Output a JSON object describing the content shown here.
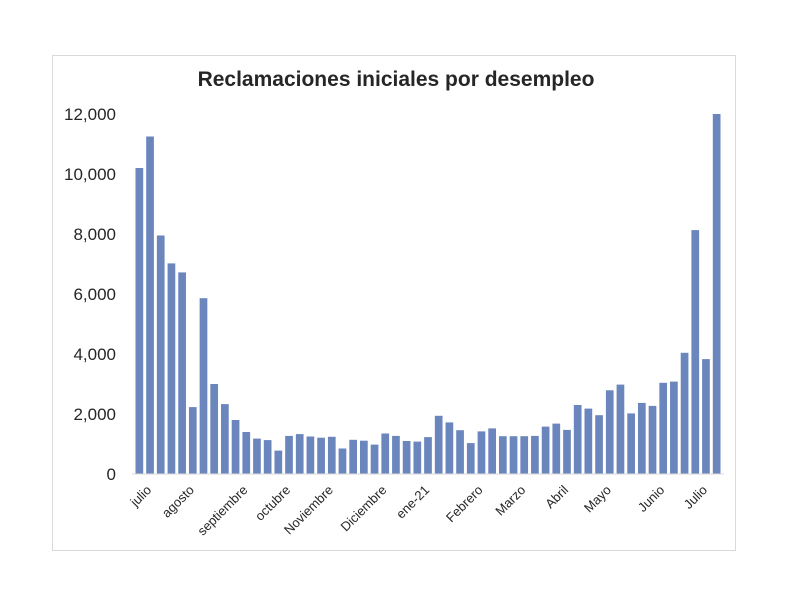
{
  "chart_data": {
    "type": "bar",
    "title": "Reclamaciones iniciales por desempleo",
    "xlabel": "",
    "ylabel": "",
    "ylim": [
      0,
      12000
    ],
    "yticks": [
      0,
      2000,
      4000,
      6000,
      8000,
      10000,
      12000
    ],
    "ytick_labels": [
      "0",
      "2,000",
      "4,000",
      "6,000",
      "8,000",
      "10,000",
      "12,000"
    ],
    "grid": false,
    "legend": "none",
    "bar_color": "#6a86bd",
    "month_labels": [
      {
        "label": "julio",
        "index": 0
      },
      {
        "label": "agosto",
        "index": 4
      },
      {
        "label": "septiembre",
        "index": 9
      },
      {
        "label": "octubre",
        "index": 13
      },
      {
        "label": "Noviembre",
        "index": 17
      },
      {
        "label": "Diciembre",
        "index": 22
      },
      {
        "label": "ene-21",
        "index": 26
      },
      {
        "label": "Febrero",
        "index": 31
      },
      {
        "label": "Marzo",
        "index": 35
      },
      {
        "label": "Abril",
        "index": 39
      },
      {
        "label": "Mayo",
        "index": 43
      },
      {
        "label": "Junio",
        "index": 48
      },
      {
        "label": "Julio",
        "index": 52
      }
    ],
    "values": [
      10200,
      11250,
      7950,
      7020,
      6720,
      2230,
      5860,
      3000,
      2330,
      1800,
      1400,
      1180,
      1130,
      780,
      1270,
      1330,
      1250,
      1210,
      1240,
      850,
      1140,
      1110,
      980,
      1350,
      1270,
      1100,
      1080,
      1230,
      1940,
      1720,
      1460,
      1030,
      1420,
      1520,
      1260,
      1260,
      1260,
      1270,
      1580,
      1680,
      1470,
      2300,
      2180,
      1960,
      2790,
      2980,
      2020,
      2370,
      2270,
      3040,
      3080,
      4040,
      8130,
      3830,
      12000
    ]
  }
}
